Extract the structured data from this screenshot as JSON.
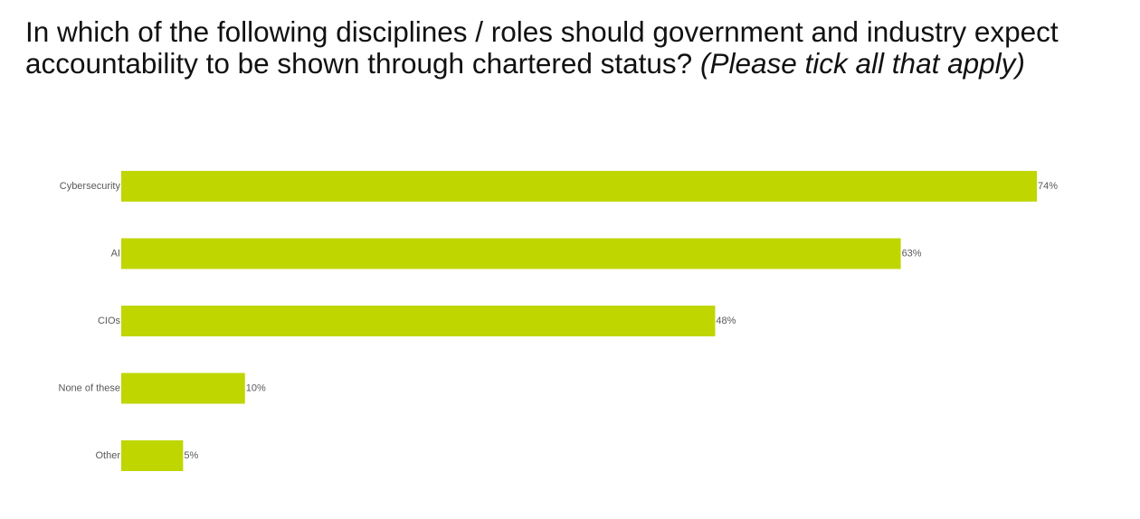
{
  "title": {
    "main": "In which of the following disciplines / roles should government and industry expect accountability to be shown through chartered status?",
    "note": "(Please tick all that apply)"
  },
  "colors": {
    "bar": "#bfd600",
    "label": "#595959",
    "title": "#111111"
  },
  "chart_data": {
    "type": "bar",
    "orientation": "horizontal",
    "title": "In which of the following disciplines / roles should government and industry expect accountability to be shown through chartered status? (Please tick all that apply)",
    "categories": [
      "Cybersecurity",
      "AI",
      "CIOs",
      "None of these",
      "Other"
    ],
    "values": [
      74,
      63,
      48,
      10,
      5
    ],
    "value_labels": [
      "74%",
      "63%",
      "48%",
      "10%",
      "5%"
    ],
    "unit": "%",
    "xlim": [
      0,
      74
    ],
    "grid": false,
    "legend": "none"
  }
}
